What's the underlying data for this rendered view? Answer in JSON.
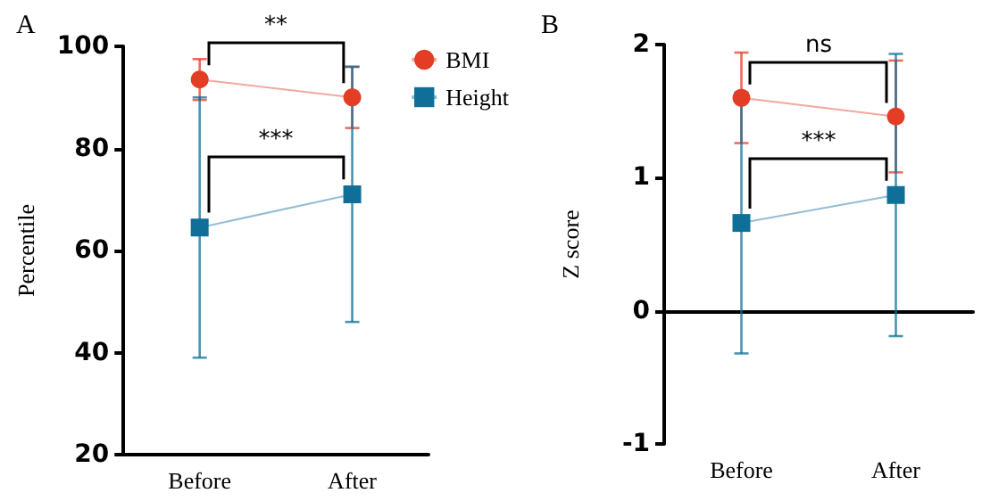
{
  "chart_data": [
    {
      "type": "line",
      "title": "A",
      "ylabel": "Percentile",
      "categories": [
        "Before",
        "After"
      ],
      "ylim": [
        20,
        100
      ],
      "yticks": [
        20,
        40,
        60,
        80,
        100
      ],
      "legend": "top right",
      "grid": false,
      "line_style": "solid",
      "series": [
        {
          "name": "BMI",
          "color": "#e33d26",
          "marker": "circle",
          "values": [
            93.5,
            90
          ],
          "errors": [
            [
              89.5,
              97.5
            ],
            [
              84,
              96
            ]
          ]
        },
        {
          "name": "Height",
          "color": "#0f6f99",
          "marker": "square",
          "values": [
            64.5,
            71
          ],
          "errors": [
            [
              39,
              90
            ],
            [
              46,
              96
            ]
          ]
        }
      ],
      "annotations": [
        "**",
        "***"
      ]
    },
    {
      "type": "line",
      "title": "B",
      "ylabel": "Z score",
      "categories": [
        "Before",
        "After"
      ],
      "ylim": [
        -1,
        2
      ],
      "yticks": [
        -1,
        0,
        1,
        2
      ],
      "legend": false,
      "grid": false,
      "line_style": "solid",
      "series": [
        {
          "color": "#e33d26",
          "marker": "circle",
          "values": [
            1.6,
            1.46
          ],
          "errors": [
            [
              1.26,
              1.94
            ],
            [
              1.04,
              1.88
            ]
          ]
        },
        {
          "color": "#0f6f99",
          "marker": "square",
          "values": [
            0.66,
            0.87
          ],
          "errors": [
            [
              -0.32,
              1.64
            ],
            [
              -0.19,
              1.93
            ]
          ]
        }
      ],
      "annotations": [
        "ns",
        "***"
      ]
    }
  ]
}
